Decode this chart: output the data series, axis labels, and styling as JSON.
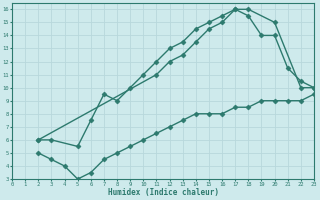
{
  "line1_x": [
    2,
    3,
    5,
    6,
    7,
    8,
    9,
    10,
    11,
    12,
    13,
    14,
    15,
    16,
    17,
    18,
    20,
    22,
    23
  ],
  "line1_y": [
    6,
    6,
    5.5,
    7.5,
    9.5,
    9,
    10,
    11,
    12,
    13,
    13.5,
    14.5,
    15,
    15.5,
    16,
    16,
    15,
    10,
    10
  ],
  "line2_x": [
    2,
    11,
    12,
    13,
    14,
    15,
    16,
    17,
    18,
    19,
    20,
    21,
    22,
    23
  ],
  "line2_y": [
    6,
    11,
    12,
    12.5,
    13.5,
    14.5,
    15,
    16,
    15.5,
    14,
    14,
    11.5,
    10.5,
    10
  ],
  "line3_x": [
    2,
    3,
    4,
    5,
    6,
    7,
    8,
    9,
    10,
    11,
    12,
    13,
    14,
    15,
    16,
    17,
    18,
    19,
    20,
    21,
    22,
    23
  ],
  "line3_y": [
    5,
    4.5,
    4,
    3,
    3.5,
    4.5,
    5,
    5.5,
    6,
    6.5,
    7,
    7.5,
    8,
    8,
    8,
    8.5,
    8.5,
    9,
    9,
    9,
    9,
    9.5
  ],
  "line_color": "#2d7a6e",
  "bg_color": "#ceeaec",
  "grid_color": "#e8f5f6",
  "xlabel": "Humidex (Indice chaleur)",
  "xlim": [
    0,
    23
  ],
  "ylim": [
    3,
    16
  ],
  "xticks": [
    0,
    1,
    2,
    3,
    4,
    5,
    6,
    7,
    8,
    9,
    10,
    11,
    12,
    13,
    14,
    15,
    16,
    17,
    18,
    19,
    20,
    21,
    22,
    23
  ],
  "yticks": [
    3,
    4,
    5,
    6,
    7,
    8,
    9,
    10,
    11,
    12,
    13,
    14,
    15,
    16
  ],
  "marker": "D",
  "marker_size": 2.5,
  "line_width": 1.0
}
